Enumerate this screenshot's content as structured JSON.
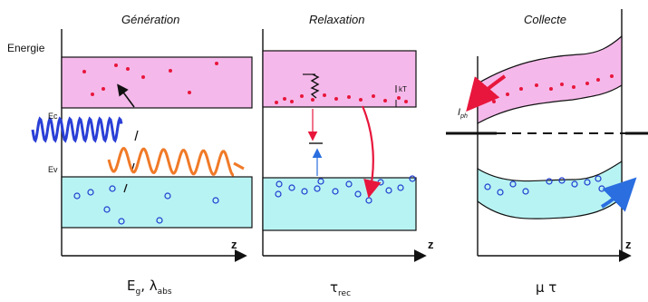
{
  "panels": {
    "generation": {
      "title": "Génération",
      "energy_label": "Energie",
      "ec_label": "Ec",
      "ev_label": "Ev",
      "z_label": "z",
      "caption_main": "E",
      "caption_sub1": "g",
      "caption_mid": ", λ",
      "caption_sub2": "abs"
    },
    "relaxation": {
      "title": "Relaxation",
      "kt_label": "kT",
      "z_label": "z",
      "caption_main": "τ",
      "caption_sub": "rec"
    },
    "collecte": {
      "title": "Collecte",
      "current_label": "I",
      "current_sub": "ph",
      "z_label": "z",
      "caption": "μ τ"
    }
  },
  "colors": {
    "conduction_band": "#f5b8ea",
    "valence_band": "#b8f3f3",
    "electron": "#e8163c",
    "hole": "#1e3cd0",
    "photon_in": "#2a3fd6",
    "photon_out": "#f07a28",
    "arrow_red": "#e8163c",
    "arrow_blue": "#2a6ee0"
  }
}
